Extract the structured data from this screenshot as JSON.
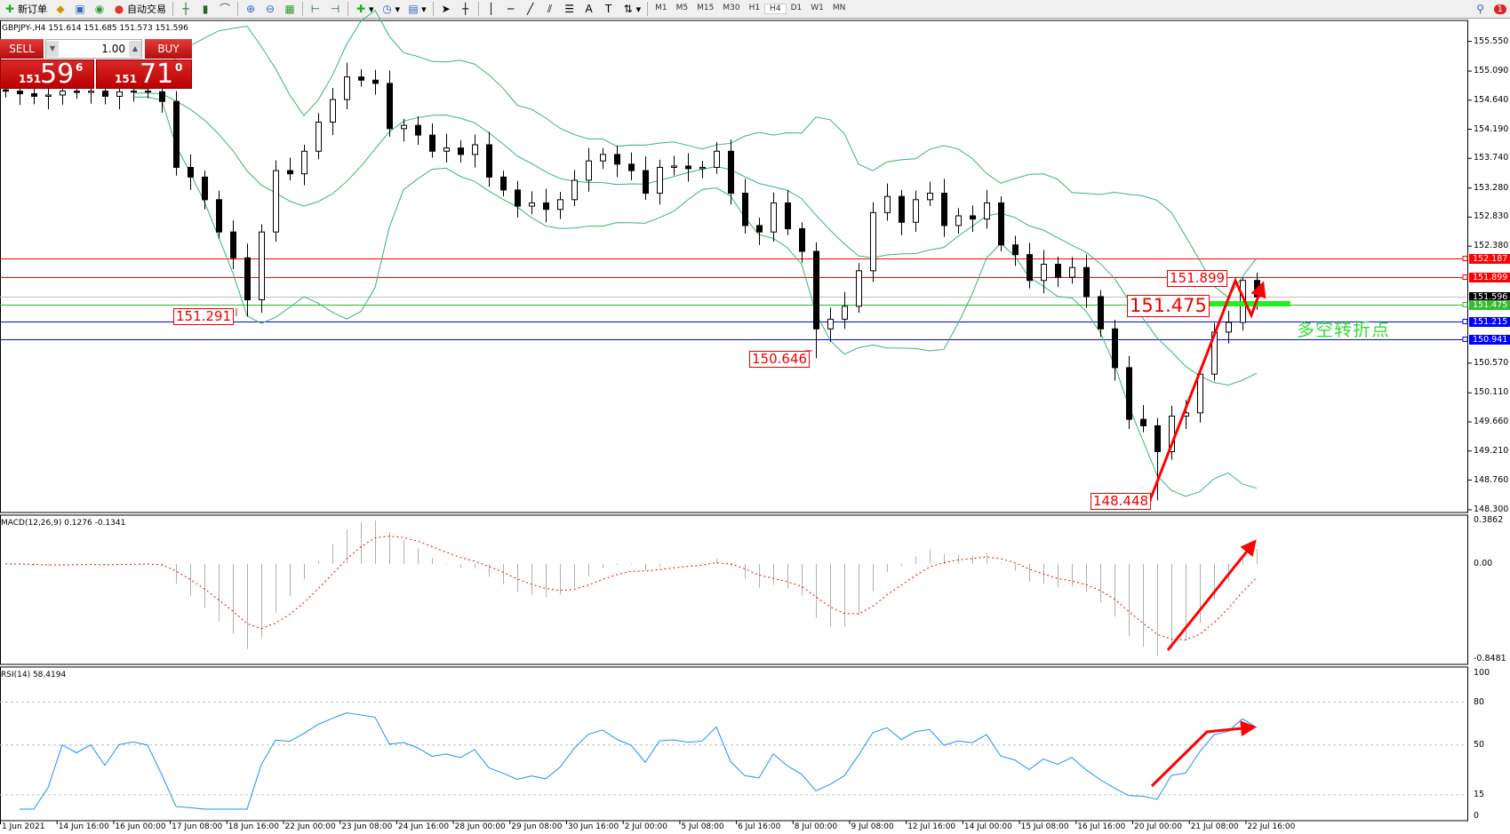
{
  "toolbar": {
    "new_order": "新订单",
    "auto_trading": "自动交易",
    "timeframes": [
      "M1",
      "M5",
      "M15",
      "M30",
      "H1",
      "H4",
      "D1",
      "W1",
      "MN"
    ],
    "active_timeframe": "H4",
    "notification_count": "1"
  },
  "chart": {
    "header": "GBPJPY-,H4  151.614 151.685 151.573 151.596",
    "macd_label": "MACD(12,26,9) 0.1276 -0.1341",
    "rsi_label": "RSI(14) 58.4194",
    "annotation_text": "多空转折点",
    "annotation_color": "#33dd33"
  },
  "one_click": {
    "sell_label": "SELL",
    "buy_label": "BUY",
    "lot": "1.00",
    "sell_price_prefix": "151",
    "sell_price_big": "59",
    "sell_price_sup": "6",
    "buy_price_prefix": "151",
    "buy_price_big": "71",
    "buy_price_sup": "0"
  },
  "price_axis": [
    "155.550",
    "155.090",
    "154.640",
    "154.190",
    "153.740",
    "153.280",
    "152.830",
    "152.380",
    "150.570",
    "150.110",
    "149.660",
    "149.210",
    "148.760",
    "148.300"
  ],
  "price_lines": [
    {
      "price": 152.187,
      "label": "152.187",
      "color": "#ff0000"
    },
    {
      "price": 151.899,
      "label": "151.899",
      "color": "#ff0000"
    },
    {
      "price": 151.596,
      "label": "151.596",
      "color": "#000000",
      "line": "#c0c0c0"
    },
    {
      "price": 151.475,
      "label": "151.475",
      "color": "#33bb33"
    },
    {
      "price": 151.215,
      "label": "151.215",
      "color": "#0000ff"
    },
    {
      "price": 150.941,
      "label": "150.941",
      "color": "#0000ff"
    }
  ],
  "annotations": [
    {
      "label": "151.291"
    },
    {
      "label": "150.646"
    },
    {
      "label": "148.448"
    },
    {
      "label": "151.899"
    },
    {
      "label": "151.475"
    }
  ],
  "macd_axis": [
    "0.3862",
    "0.00",
    "-0.8481"
  ],
  "rsi_axis": [
    "100",
    "80",
    "50",
    "15",
    "0"
  ],
  "time_axis": [
    "1 Jun 2021",
    "14 Jun 16:00",
    "16 Jun 00:00",
    "17 Jun 08:00",
    "18 Jun 16:00",
    "22 Jun 00:00",
    "23 Jun 08:00",
    "24 Jun 16:00",
    "28 Jun 00:00",
    "29 Jun 08:00",
    "30 Jun 16:00",
    "2 Jul 00:00",
    "5 Jul 08:00",
    "6 Jul 16:00",
    "8 Jul 00:00",
    "9 Jul 08:00",
    "12 Jul 16:00",
    "14 Jul 00:00",
    "15 Jul 08:00",
    "16 Jul 16:00",
    "20 Jul 00:00",
    "21 Jul 08:00",
    "22 Jul 16:00"
  ],
  "chart_data": {
    "type": "candlestick",
    "symbol": "GBPJPY-",
    "timeframe": "H4",
    "ylim": [
      148.3,
      155.55
    ],
    "closes": [
      154.78,
      154.74,
      154.7,
      154.72,
      154.78,
      154.76,
      154.78,
      154.7,
      154.77,
      154.78,
      154.77,
      154.62,
      153.6,
      153.45,
      153.1,
      152.6,
      152.2,
      151.55,
      152.6,
      153.55,
      153.5,
      153.85,
      154.3,
      154.65,
      155.0,
      154.95,
      154.9,
      154.2,
      154.25,
      154.1,
      153.85,
      153.9,
      153.8,
      153.95,
      153.45,
      153.25,
      153.0,
      153.05,
      152.95,
      153.1,
      153.4,
      153.7,
      153.8,
      153.65,
      153.55,
      153.2,
      153.6,
      153.62,
      153.58,
      153.6,
      153.85,
      153.2,
      152.7,
      152.6,
      153.05,
      152.65,
      152.3,
      151.1,
      151.25,
      151.45,
      152.0,
      152.9,
      153.15,
      152.75,
      153.1,
      153.2,
      152.7,
      152.85,
      152.8,
      153.05,
      152.4,
      152.25,
      151.85,
      152.1,
      151.9,
      152.05,
      151.6,
      151.1,
      150.5,
      149.7,
      149.6,
      149.2,
      149.75,
      149.8,
      150.4,
      151.05,
      151.2,
      151.85,
      151.596
    ],
    "first_open": 154.8,
    "low_overrides": [
      {
        "bar": 17,
        "low": 151.291
      },
      {
        "bar": 57,
        "low": 150.646
      },
      {
        "bar": 81,
        "low": 148.448
      }
    ],
    "high_overrides": [
      {
        "bar": 87,
        "high": 151.899
      }
    ],
    "indicators": {
      "bollinger": true,
      "macd": {
        "ylim": [
          -0.8481,
          0.3862
        ]
      },
      "rsi": {
        "levels": [
          80,
          50,
          15
        ],
        "ylim": [
          0,
          100
        ]
      }
    }
  }
}
